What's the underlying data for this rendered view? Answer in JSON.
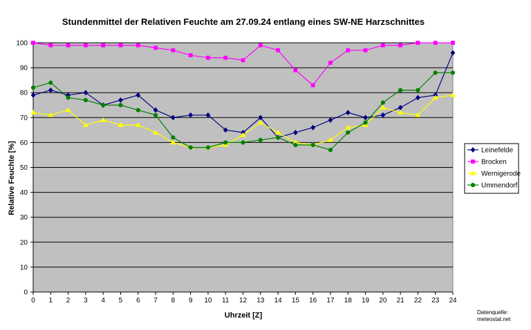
{
  "chart_data": {
    "type": "line",
    "title": "Stundenmittel der Relativen Feuchte am 27.09.24 entlang eines SW-NE Harzschnittes",
    "xlabel": "Uhrzeit [Z]",
    "ylabel": "Relative Feuchte [%]",
    "ylim": [
      0,
      100
    ],
    "yticks": [
      0,
      10,
      20,
      30,
      40,
      50,
      60,
      70,
      80,
      90,
      100
    ],
    "x": [
      0,
      1,
      2,
      3,
      4,
      5,
      6,
      7,
      8,
      9,
      10,
      11,
      12,
      13,
      14,
      15,
      16,
      17,
      18,
      19,
      20,
      21,
      22,
      23,
      24
    ],
    "grid": true,
    "legend_position": "right",
    "background_color": "#c0c0c0",
    "series": [
      {
        "name": "Leinefelde",
        "color": "#000080",
        "marker": "diamond",
        "values": [
          79,
          81,
          79,
          80,
          75,
          77,
          79,
          73,
          70,
          71,
          71,
          65,
          64,
          70,
          62,
          64,
          66,
          69,
          72,
          70,
          71,
          74,
          78,
          79,
          96
        ]
      },
      {
        "name": "Brocken",
        "color": "#ff00ff",
        "marker": "square",
        "values": [
          100,
          99,
          99,
          99,
          99,
          99,
          99,
          98,
          97,
          95,
          94,
          94,
          93,
          99,
          97,
          89,
          83,
          92,
          97,
          97,
          99,
          99,
          100,
          100,
          100
        ]
      },
      {
        "name": "Wernigerode",
        "color": "#ffff00",
        "marker": "triangle",
        "values": [
          72,
          71,
          73,
          67,
          69,
          67,
          67,
          64,
          60,
          58,
          58,
          59,
          63,
          68,
          64,
          60,
          59,
          61,
          66,
          67,
          74,
          72,
          71,
          78,
          79
        ]
      },
      {
        "name": "Ummendorf",
        "color": "#008000",
        "marker": "circle",
        "values": [
          82,
          84,
          78,
          77,
          75,
          75,
          73,
          71,
          62,
          58,
          58,
          60,
          60,
          61,
          62,
          59,
          59,
          57,
          64,
          68,
          76,
          81,
          81,
          88,
          88
        ]
      }
    ]
  },
  "source": {
    "label": "Datenquelle:",
    "site": "meteostat.net"
  }
}
